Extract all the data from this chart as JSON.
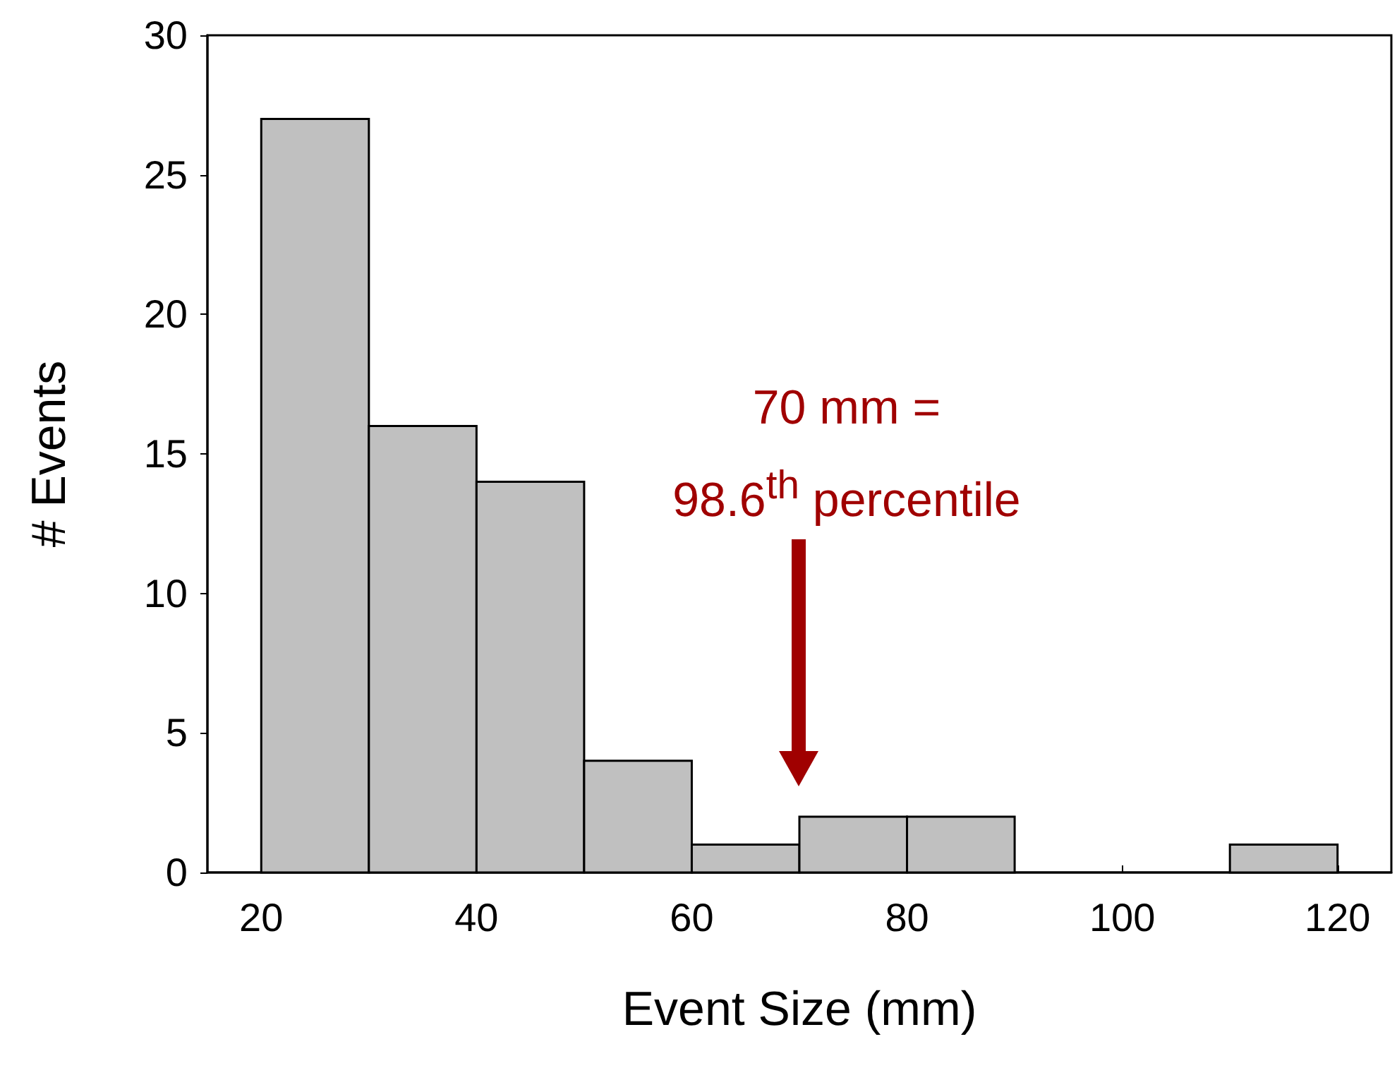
{
  "chart_data": {
    "type": "histogram",
    "xlabel": "Event Size (mm)",
    "ylabel": "# Events",
    "bins": [
      20,
      30,
      40,
      50,
      60,
      70,
      80,
      90,
      100,
      110,
      120
    ],
    "values": [
      27,
      16,
      14,
      4,
      1,
      2,
      2,
      0,
      0,
      1
    ],
    "color": "#c0c0c0",
    "xlim": [
      15,
      125
    ],
    "xticks": [
      20,
      40,
      60,
      80,
      100,
      120
    ],
    "ylim": [
      0,
      30
    ],
    "yticks": [
      0,
      5,
      10,
      15,
      20,
      25,
      30
    ],
    "grid": false,
    "annotations": [
      "70 mm =\n98.6$^{th}$ percentile"
    ]
  }
}
